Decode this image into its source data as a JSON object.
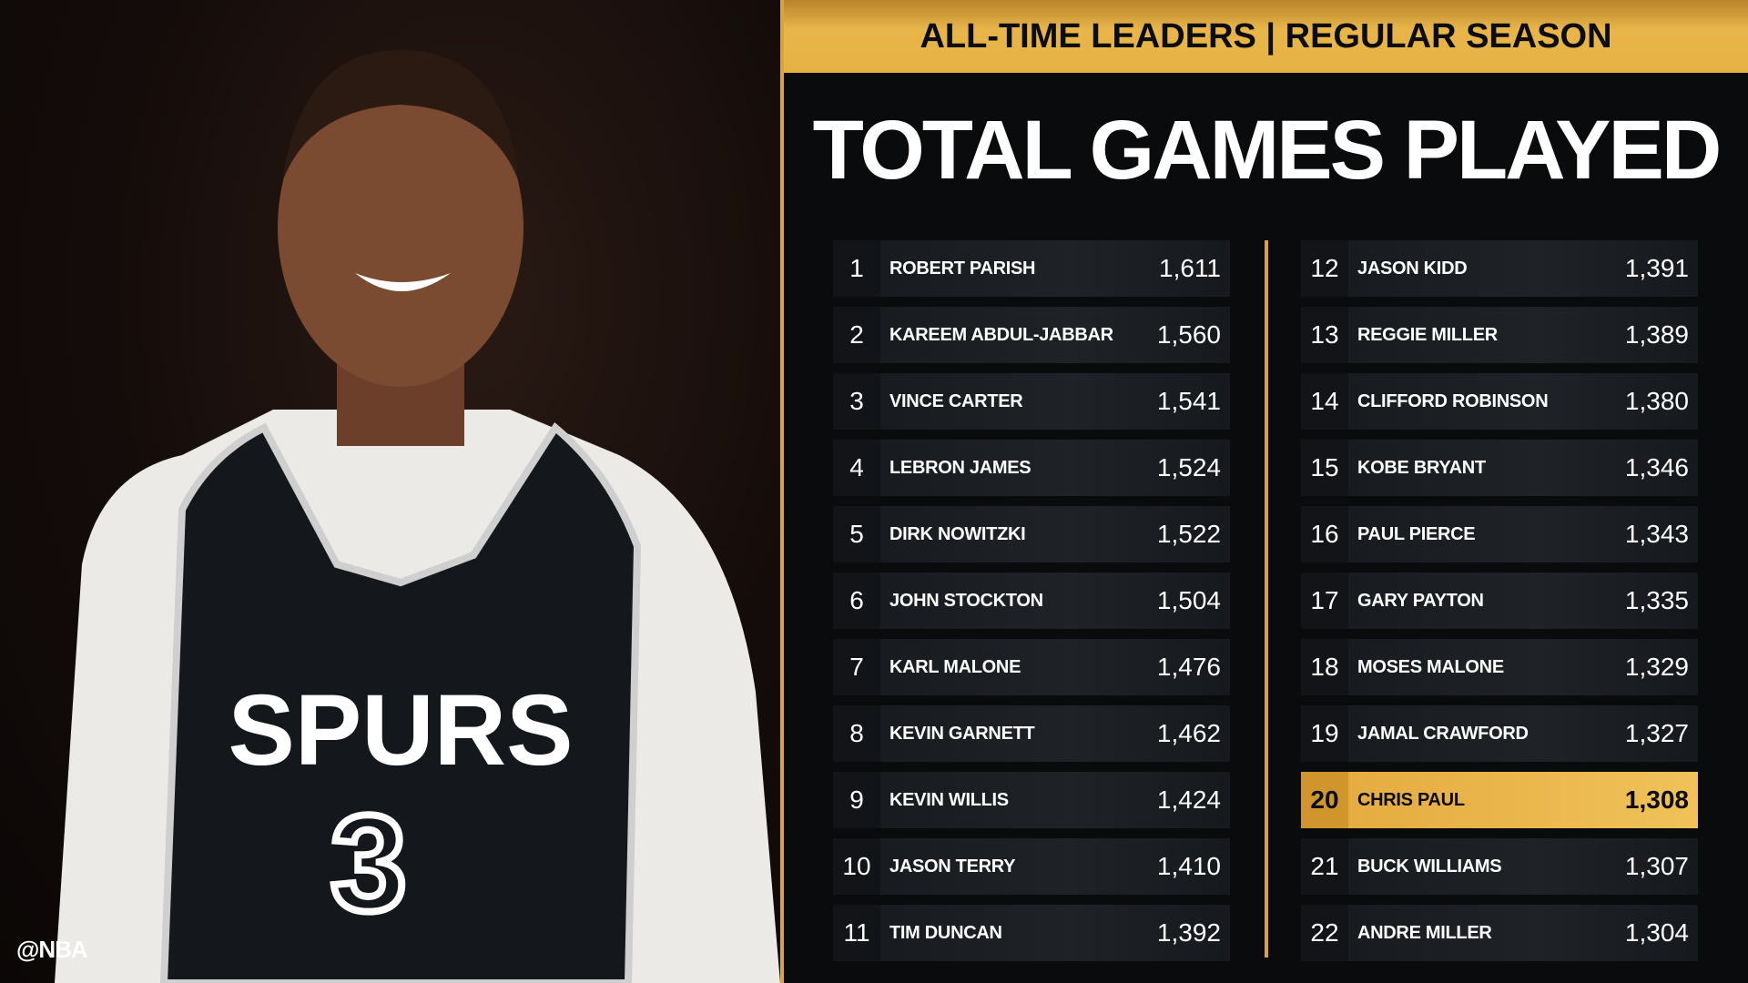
{
  "header": {
    "subtitle": "ALL-TIME LEADERS | REGULAR SEASON",
    "title": "TOTAL GAMES PLAYED"
  },
  "photo": {
    "jersey_text": "SPURS",
    "jersey_number": "3",
    "watermark": "@NBA"
  },
  "colors": {
    "gold": "#e6b244",
    "background": "#0a0b0d",
    "row": "#1f2227",
    "highlight": "#f0c259"
  },
  "leaders": [
    {
      "rank": "1",
      "name": "ROBERT PARISH",
      "games": "1,611"
    },
    {
      "rank": "2",
      "name": "KAREEM ABDUL-JABBAR",
      "games": "1,560"
    },
    {
      "rank": "3",
      "name": "VINCE CARTER",
      "games": "1,541"
    },
    {
      "rank": "4",
      "name": "LEBRON JAMES",
      "games": "1,524"
    },
    {
      "rank": "5",
      "name": "DIRK NOWITZKI",
      "games": "1,522"
    },
    {
      "rank": "6",
      "name": "JOHN STOCKTON",
      "games": "1,504"
    },
    {
      "rank": "7",
      "name": "KARL MALONE",
      "games": "1,476"
    },
    {
      "rank": "8",
      "name": "KEVIN GARNETT",
      "games": "1,462"
    },
    {
      "rank": "9",
      "name": "KEVIN WILLIS",
      "games": "1,424"
    },
    {
      "rank": "10",
      "name": "JASON TERRY",
      "games": "1,410"
    },
    {
      "rank": "11",
      "name": "TIM DUNCAN",
      "games": "1,392"
    },
    {
      "rank": "12",
      "name": "JASON KIDD",
      "games": "1,391"
    },
    {
      "rank": "13",
      "name": "REGGIE MILLER",
      "games": "1,389"
    },
    {
      "rank": "14",
      "name": "CLIFFORD ROBINSON",
      "games": "1,380"
    },
    {
      "rank": "15",
      "name": "KOBE BRYANT",
      "games": "1,346"
    },
    {
      "rank": "16",
      "name": "PAUL PIERCE",
      "games": "1,343"
    },
    {
      "rank": "17",
      "name": "GARY PAYTON",
      "games": "1,335"
    },
    {
      "rank": "18",
      "name": "MOSES MALONE",
      "games": "1,329"
    },
    {
      "rank": "19",
      "name": "JAMAL CRAWFORD",
      "games": "1,327"
    },
    {
      "rank": "20",
      "name": "CHRIS PAUL",
      "games": "1,308",
      "highlighted": true
    },
    {
      "rank": "21",
      "name": "BUCK WILLIAMS",
      "games": "1,307"
    },
    {
      "rank": "22",
      "name": "ANDRE MILLER",
      "games": "1,304"
    }
  ]
}
